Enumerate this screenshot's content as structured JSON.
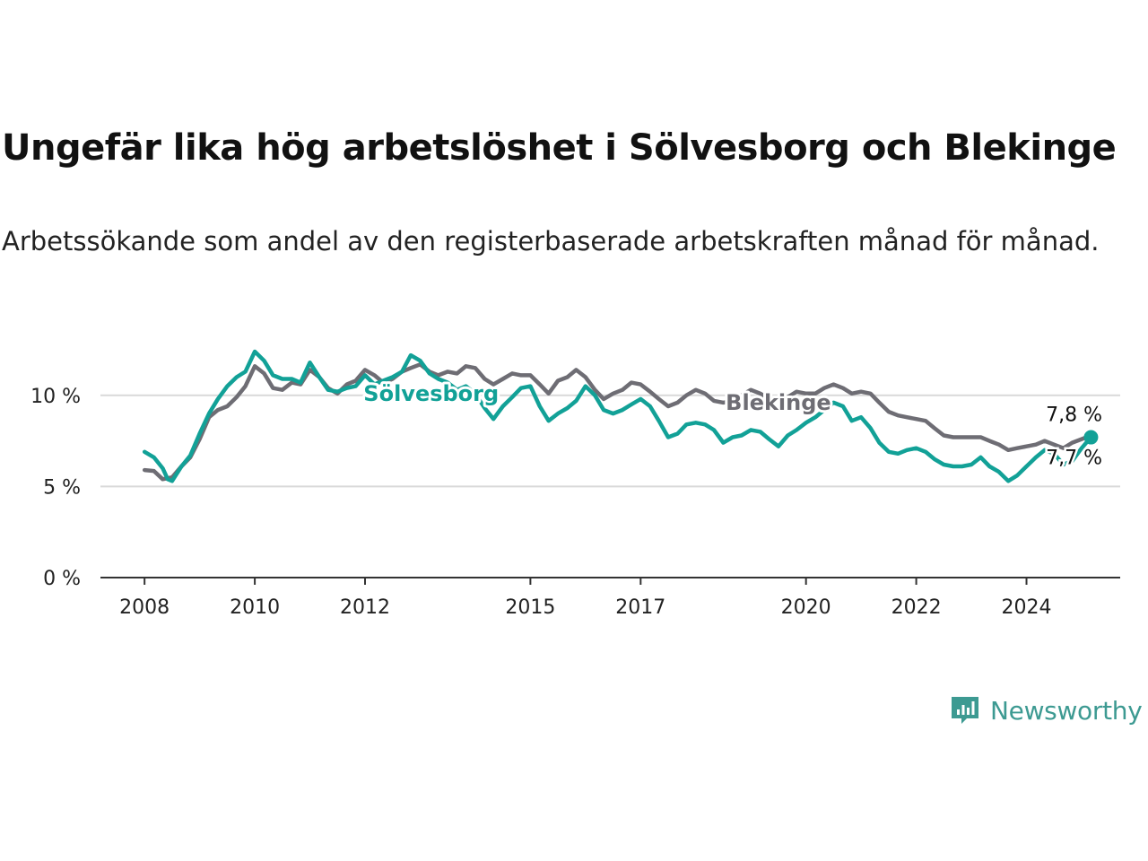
{
  "title": "Ungefär lika hög arbetslöshet i Sölvesborg och Blekinge",
  "subtitle": "Arbetssökande som andel av den registerbaserade arbetskraften månad för månad.",
  "brand": {
    "name": "Newsworthy",
    "color": "#3d9a92",
    "icon": "newsworthy-bar-chart-icon"
  },
  "chart_data": {
    "type": "line",
    "ylim": [
      0,
      12.5
    ],
    "y_ticks": [
      {
        "value": 0,
        "label": "0 %"
      },
      {
        "value": 5,
        "label": "5 %"
      },
      {
        "value": 10,
        "label": "10 %"
      }
    ],
    "x_ticks": [
      {
        "value": 2008,
        "label": "2008"
      },
      {
        "value": 2010,
        "label": "2010"
      },
      {
        "value": 2012,
        "label": "2012"
      },
      {
        "value": 2015,
        "label": "2015"
      },
      {
        "value": 2017,
        "label": "2017"
      },
      {
        "value": 2020,
        "label": "2020"
      },
      {
        "value": 2022,
        "label": "2022"
      },
      {
        "value": 2024,
        "label": "2024"
      }
    ],
    "xlim": [
      2007.2,
      2025.7
    ],
    "grid": "horizontal",
    "series": [
      {
        "name": "Blekinge",
        "color": "#6e6d74",
        "end_label": "7,8 %",
        "points": [
          [
            2008.0,
            5.9
          ],
          [
            2008.17,
            5.85
          ],
          [
            2008.33,
            5.4
          ],
          [
            2008.5,
            5.5
          ],
          [
            2008.67,
            6.1
          ],
          [
            2008.83,
            6.6
          ],
          [
            2009.0,
            7.6
          ],
          [
            2009.17,
            8.8
          ],
          [
            2009.33,
            9.2
          ],
          [
            2009.5,
            9.4
          ],
          [
            2009.67,
            9.9
          ],
          [
            2009.83,
            10.5
          ],
          [
            2010.0,
            11.6
          ],
          [
            2010.17,
            11.2
          ],
          [
            2010.33,
            10.4
          ],
          [
            2010.5,
            10.3
          ],
          [
            2010.67,
            10.7
          ],
          [
            2010.83,
            10.6
          ],
          [
            2011.0,
            11.4
          ],
          [
            2011.17,
            11.0
          ],
          [
            2011.33,
            10.4
          ],
          [
            2011.5,
            10.1
          ],
          [
            2011.67,
            10.6
          ],
          [
            2011.83,
            10.8
          ],
          [
            2012.0,
            11.4
          ],
          [
            2012.17,
            11.1
          ],
          [
            2012.33,
            10.7
          ],
          [
            2012.5,
            10.9
          ],
          [
            2012.67,
            11.3
          ],
          [
            2012.83,
            11.5
          ],
          [
            2013.0,
            11.7
          ],
          [
            2013.17,
            11.3
          ],
          [
            2013.33,
            11.1
          ],
          [
            2013.5,
            11.3
          ],
          [
            2013.67,
            11.2
          ],
          [
            2013.83,
            11.6
          ],
          [
            2014.0,
            11.5
          ],
          [
            2014.17,
            10.9
          ],
          [
            2014.33,
            10.6
          ],
          [
            2014.5,
            10.9
          ],
          [
            2014.67,
            11.2
          ],
          [
            2014.83,
            11.1
          ],
          [
            2015.0,
            11.1
          ],
          [
            2015.17,
            10.6
          ],
          [
            2015.33,
            10.1
          ],
          [
            2015.5,
            10.8
          ],
          [
            2015.67,
            11.0
          ],
          [
            2015.83,
            11.4
          ],
          [
            2016.0,
            11.0
          ],
          [
            2016.17,
            10.3
          ],
          [
            2016.33,
            9.8
          ],
          [
            2016.5,
            10.1
          ],
          [
            2016.67,
            10.3
          ],
          [
            2016.83,
            10.7
          ],
          [
            2017.0,
            10.6
          ],
          [
            2017.17,
            10.2
          ],
          [
            2017.33,
            9.8
          ],
          [
            2017.5,
            9.4
          ],
          [
            2017.67,
            9.6
          ],
          [
            2017.83,
            10.0
          ],
          [
            2018.0,
            10.3
          ],
          [
            2018.17,
            10.1
          ],
          [
            2018.33,
            9.7
          ],
          [
            2018.5,
            9.6
          ],
          [
            2018.67,
            9.7
          ],
          [
            2018.83,
            10.0
          ],
          [
            2019.0,
            10.3
          ],
          [
            2019.17,
            10.1
          ],
          [
            2019.33,
            9.8
          ],
          [
            2019.5,
            9.8
          ],
          [
            2019.67,
            9.9
          ],
          [
            2019.83,
            10.2
          ],
          [
            2020.0,
            10.1
          ],
          [
            2020.17,
            10.1
          ],
          [
            2020.33,
            10.4
          ],
          [
            2020.5,
            10.6
          ],
          [
            2020.67,
            10.4
          ],
          [
            2020.83,
            10.1
          ],
          [
            2021.0,
            10.2
          ],
          [
            2021.17,
            10.1
          ],
          [
            2021.33,
            9.6
          ],
          [
            2021.5,
            9.1
          ],
          [
            2021.67,
            8.9
          ],
          [
            2021.83,
            8.8
          ],
          [
            2022.0,
            8.7
          ],
          [
            2022.17,
            8.6
          ],
          [
            2022.33,
            8.2
          ],
          [
            2022.5,
            7.8
          ],
          [
            2022.67,
            7.7
          ],
          [
            2022.83,
            7.7
          ],
          [
            2023.0,
            7.7
          ],
          [
            2023.17,
            7.7
          ],
          [
            2023.33,
            7.5
          ],
          [
            2023.5,
            7.3
          ],
          [
            2023.67,
            7.0
          ],
          [
            2023.83,
            7.1
          ],
          [
            2024.0,
            7.2
          ],
          [
            2024.17,
            7.3
          ],
          [
            2024.33,
            7.5
          ],
          [
            2024.5,
            7.3
          ],
          [
            2024.67,
            7.1
          ],
          [
            2024.83,
            7.4
          ],
          [
            2025.0,
            7.6
          ],
          [
            2025.17,
            7.8
          ]
        ]
      },
      {
        "name": "Sölvesborg",
        "color": "#12a197",
        "end_label": "7,7 %",
        "points": [
          [
            2008.0,
            6.9
          ],
          [
            2008.17,
            6.6
          ],
          [
            2008.33,
            6.0
          ],
          [
            2008.42,
            5.4
          ],
          [
            2008.5,
            5.3
          ],
          [
            2008.67,
            6.1
          ],
          [
            2008.83,
            6.7
          ],
          [
            2009.0,
            7.9
          ],
          [
            2009.17,
            9.0
          ],
          [
            2009.33,
            9.8
          ],
          [
            2009.5,
            10.5
          ],
          [
            2009.67,
            11.0
          ],
          [
            2009.83,
            11.3
          ],
          [
            2010.0,
            12.4
          ],
          [
            2010.17,
            11.9
          ],
          [
            2010.33,
            11.1
          ],
          [
            2010.5,
            10.9
          ],
          [
            2010.67,
            10.9
          ],
          [
            2010.83,
            10.7
          ],
          [
            2011.0,
            11.8
          ],
          [
            2011.17,
            11.0
          ],
          [
            2011.33,
            10.3
          ],
          [
            2011.5,
            10.2
          ],
          [
            2011.67,
            10.4
          ],
          [
            2011.83,
            10.5
          ],
          [
            2012.0,
            11.1
          ],
          [
            2012.17,
            10.6
          ],
          [
            2012.33,
            10.8
          ],
          [
            2012.5,
            11.0
          ],
          [
            2012.67,
            11.3
          ],
          [
            2012.83,
            12.2
          ],
          [
            2013.0,
            11.9
          ],
          [
            2013.17,
            11.2
          ],
          [
            2013.33,
            10.9
          ],
          [
            2013.5,
            10.7
          ],
          [
            2013.67,
            10.3
          ],
          [
            2013.83,
            10.5
          ],
          [
            2014.0,
            10.1
          ],
          [
            2014.17,
            9.3
          ],
          [
            2014.33,
            8.7
          ],
          [
            2014.5,
            9.4
          ],
          [
            2014.67,
            9.9
          ],
          [
            2014.83,
            10.4
          ],
          [
            2015.0,
            10.5
          ],
          [
            2015.17,
            9.4
          ],
          [
            2015.33,
            8.6
          ],
          [
            2015.5,
            9.0
          ],
          [
            2015.67,
            9.3
          ],
          [
            2015.83,
            9.7
          ],
          [
            2016.0,
            10.5
          ],
          [
            2016.17,
            10.0
          ],
          [
            2016.33,
            9.2
          ],
          [
            2016.5,
            9.0
          ],
          [
            2016.67,
            9.2
          ],
          [
            2016.83,
            9.5
          ],
          [
            2017.0,
            9.8
          ],
          [
            2017.17,
            9.4
          ],
          [
            2017.33,
            8.6
          ],
          [
            2017.5,
            7.7
          ],
          [
            2017.67,
            7.9
          ],
          [
            2017.83,
            8.4
          ],
          [
            2018.0,
            8.5
          ],
          [
            2018.17,
            8.4
          ],
          [
            2018.33,
            8.1
          ],
          [
            2018.5,
            7.4
          ],
          [
            2018.67,
            7.7
          ],
          [
            2018.83,
            7.8
          ],
          [
            2019.0,
            8.1
          ],
          [
            2019.17,
            8.0
          ],
          [
            2019.33,
            7.6
          ],
          [
            2019.5,
            7.2
          ],
          [
            2019.67,
            7.8
          ],
          [
            2019.83,
            8.1
          ],
          [
            2020.0,
            8.5
          ],
          [
            2020.17,
            8.8
          ],
          [
            2020.33,
            9.2
          ],
          [
            2020.5,
            9.6
          ],
          [
            2020.67,
            9.4
          ],
          [
            2020.83,
            8.6
          ],
          [
            2021.0,
            8.8
          ],
          [
            2021.17,
            8.2
          ],
          [
            2021.33,
            7.4
          ],
          [
            2021.5,
            6.9
          ],
          [
            2021.67,
            6.8
          ],
          [
            2021.83,
            7.0
          ],
          [
            2022.0,
            7.1
          ],
          [
            2022.17,
            6.9
          ],
          [
            2022.33,
            6.5
          ],
          [
            2022.5,
            6.2
          ],
          [
            2022.67,
            6.1
          ],
          [
            2022.83,
            6.1
          ],
          [
            2023.0,
            6.2
          ],
          [
            2023.17,
            6.6
          ],
          [
            2023.33,
            6.1
          ],
          [
            2023.5,
            5.8
          ],
          [
            2023.67,
            5.3
          ],
          [
            2023.83,
            5.6
          ],
          [
            2024.0,
            6.1
          ],
          [
            2024.17,
            6.6
          ],
          [
            2024.33,
            7.0
          ],
          [
            2024.5,
            6.8
          ],
          [
            2024.67,
            6.2
          ],
          [
            2024.83,
            6.4
          ],
          [
            2025.0,
            7.1
          ],
          [
            2025.17,
            7.7
          ]
        ]
      }
    ]
  }
}
